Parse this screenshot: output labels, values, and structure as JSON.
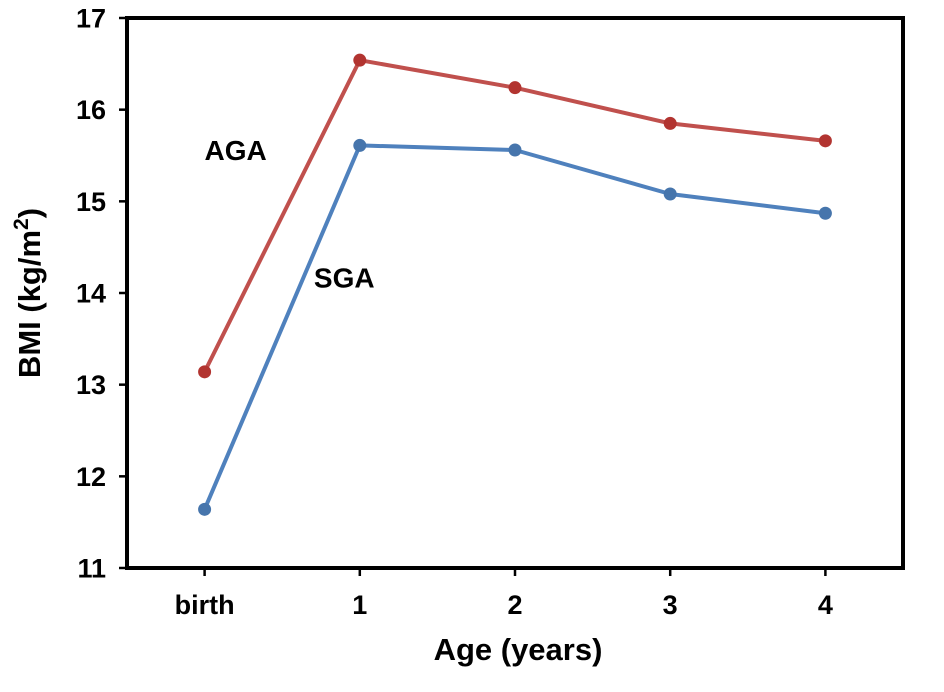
{
  "figure": {
    "background": "#ffffff",
    "axis_color": "#000000",
    "text_color": "#000000"
  },
  "chart_data": {
    "type": "line",
    "title": "",
    "categories": [
      "birth",
      "1",
      "2",
      "3",
      "4"
    ],
    "xlabel": "Age (years)",
    "ylabel": "BMI (kg/m²)",
    "ylabel_parts": {
      "prefix": "BMI (kg/m",
      "superscript": "2",
      "suffix": ")"
    },
    "ylim": [
      11,
      17
    ],
    "yticks": [
      "11",
      "12",
      "13",
      "14",
      "15",
      "16",
      "17"
    ],
    "grid": false,
    "legend_position": "inline-annotations",
    "series": [
      {
        "name": "AGA",
        "color": "#c0504d",
        "marker_color": "#b23430",
        "values": [
          13.14,
          16.54,
          16.24,
          15.85,
          15.66
        ]
      },
      {
        "name": "SGA",
        "color": "#4f81bd",
        "marker_color": "#4675ac",
        "values": [
          11.64,
          15.61,
          15.56,
          15.08,
          14.87
        ]
      }
    ],
    "annotations": [
      {
        "text": "AGA",
        "x": 0.2,
        "y": 15.56
      },
      {
        "text": "SGA",
        "x": 0.9,
        "y": 14.17
      }
    ]
  }
}
